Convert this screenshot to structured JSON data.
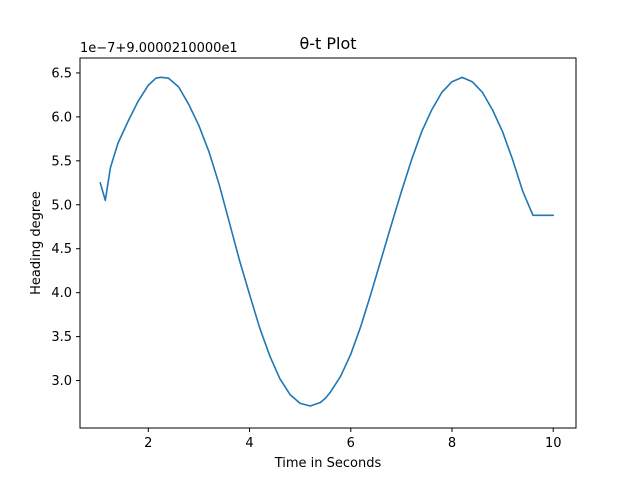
{
  "chart_data": {
    "type": "line",
    "title": "θ-t Plot",
    "xlabel": "Time in Seconds",
    "ylabel": "Heading degree",
    "offset_text": "1e−7+9.0000210000e1",
    "xlim": [
      0.65,
      10.45
    ],
    "ylim": [
      2.46,
      6.67
    ],
    "xticks": [
      2,
      4,
      6,
      8,
      10
    ],
    "xtick_labels": [
      "2",
      "4",
      "6",
      "8",
      "10"
    ],
    "yticks": [
      3.0,
      3.5,
      4.0,
      4.5,
      5.0,
      5.5,
      6.0,
      6.5
    ],
    "ytick_labels": [
      "3.0",
      "3.5",
      "4.0",
      "4.5",
      "5.0",
      "5.5",
      "6.0",
      "6.5"
    ],
    "grid": false,
    "line_color": "#1f77b4",
    "series": [
      {
        "x": [
          1.05,
          1.15,
          1.25,
          1.4,
          1.6,
          1.8,
          2.0,
          2.15,
          2.25,
          2.4,
          2.6,
          2.8,
          3.0,
          3.2,
          3.4,
          3.6,
          3.8,
          4.0,
          4.2,
          4.4,
          4.6,
          4.8,
          5.0,
          5.2,
          5.4,
          5.5,
          5.6,
          5.8,
          6.0,
          6.2,
          6.4,
          6.6,
          6.8,
          7.0,
          7.2,
          7.4,
          7.6,
          7.8,
          8.0,
          8.2,
          8.4,
          8.6,
          8.8,
          9.0,
          9.2,
          9.4,
          9.6,
          9.8,
          10.0
        ],
        "y": [
          5.25,
          5.05,
          5.42,
          5.7,
          5.95,
          6.18,
          6.36,
          6.44,
          6.45,
          6.44,
          6.34,
          6.14,
          5.9,
          5.6,
          5.23,
          4.8,
          4.37,
          3.98,
          3.6,
          3.28,
          3.02,
          2.84,
          2.74,
          2.71,
          2.75,
          2.8,
          2.87,
          3.05,
          3.3,
          3.62,
          3.99,
          4.38,
          4.77,
          5.15,
          5.51,
          5.83,
          6.08,
          6.28,
          6.4,
          6.45,
          6.4,
          6.28,
          6.08,
          5.83,
          5.51,
          5.15,
          4.88,
          4.88,
          4.88
        ]
      }
    ]
  }
}
